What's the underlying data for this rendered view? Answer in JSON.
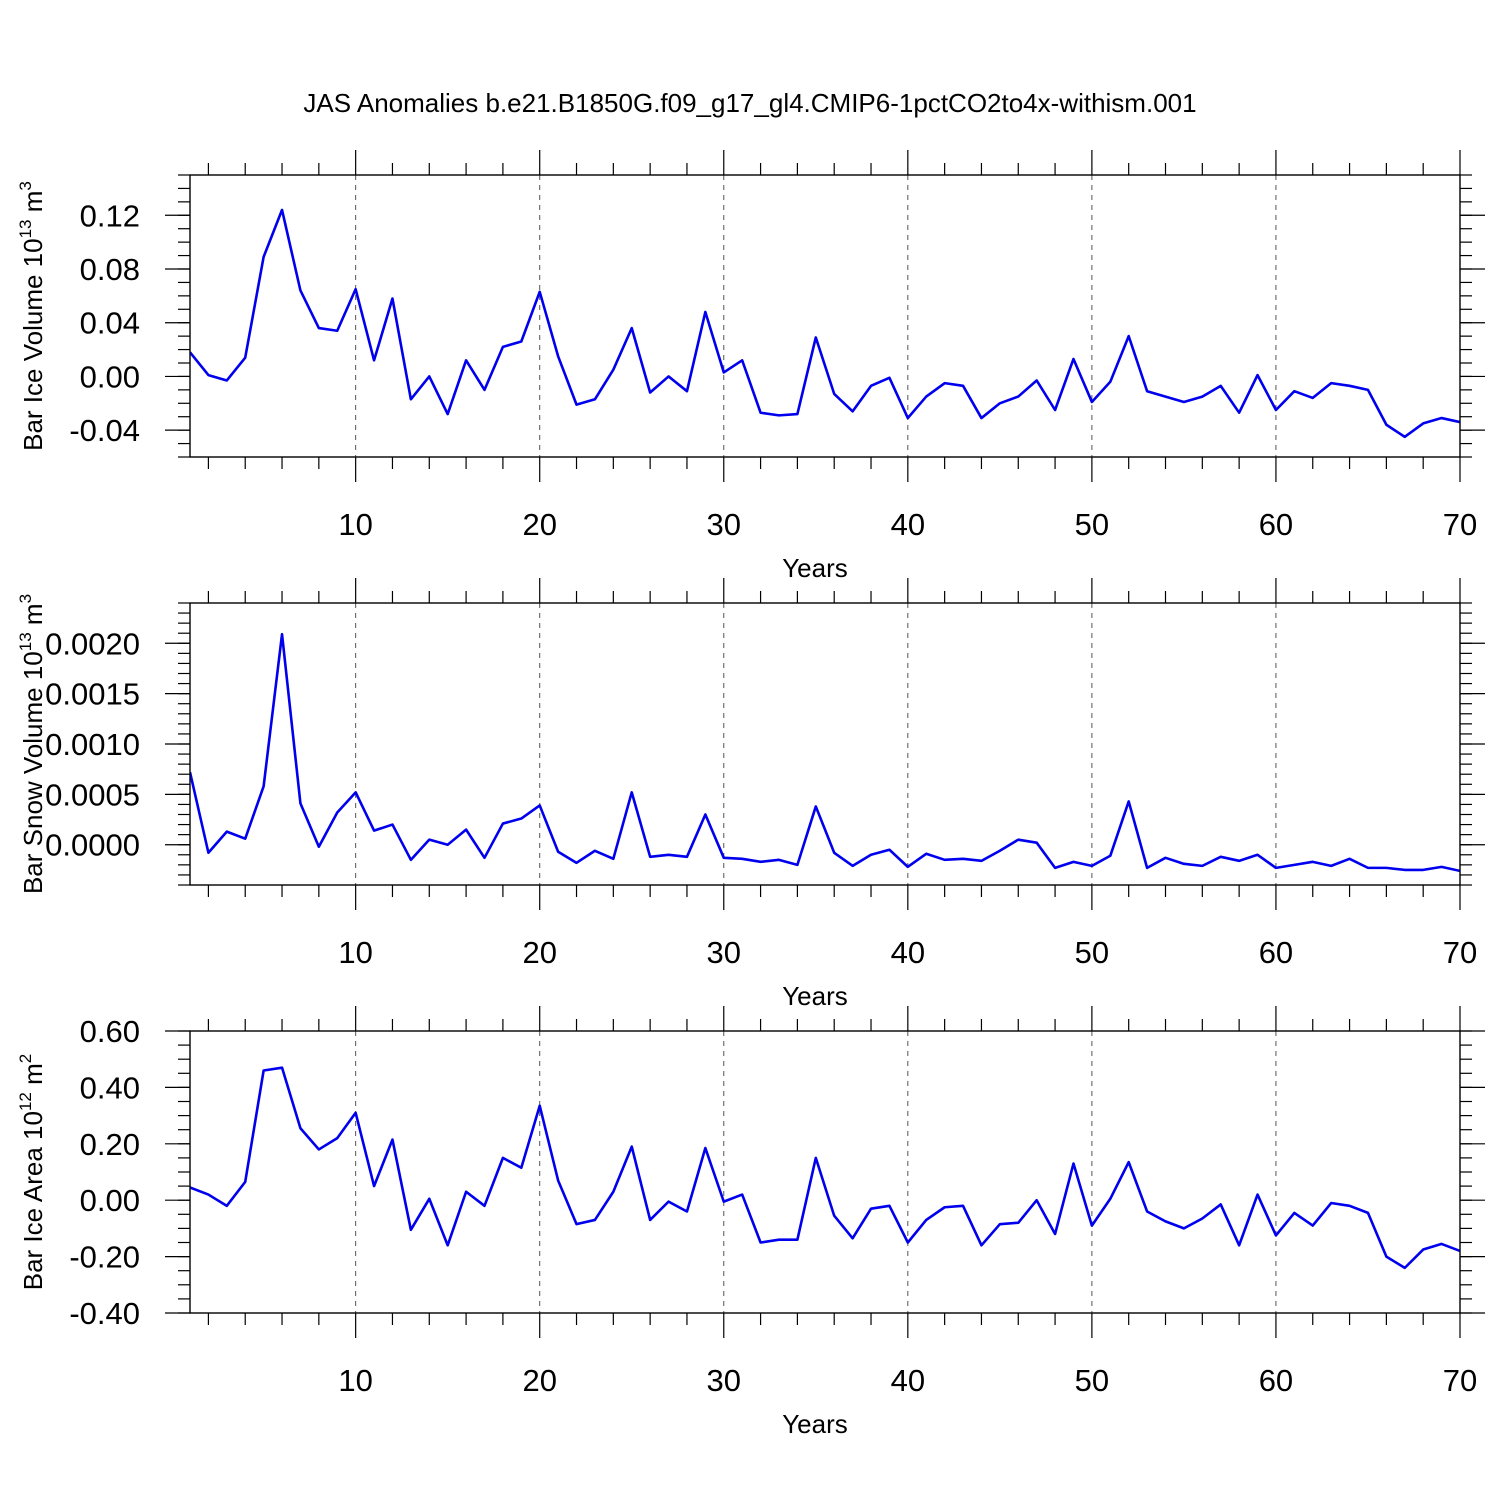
{
  "title": "JAS Anomalies b.e21.B1850G.f09_g17_gl4.CMIP6-1pctCO2to4x-withism.001",
  "line_color": "#0000ee",
  "chart_data": [
    {
      "type": "line",
      "ylabel": "Bar Ice Volume 10",
      "ylabel_exp": "13",
      "ylabel_unit": " m",
      "ylabel_unit_exp": "3",
      "xlabel": "Years",
      "xlim": [
        1,
        70
      ],
      "ylim": [
        -0.06,
        0.15
      ],
      "xticks": [
        "10",
        "20",
        "30",
        "40",
        "50",
        "60",
        "70"
      ],
      "xgrid": [
        10,
        20,
        30,
        40,
        50,
        60
      ],
      "yticks": [
        {
          "v": 0.12,
          "label": "0.12"
        },
        {
          "v": 0.08,
          "label": "0.08"
        },
        {
          "v": 0.04,
          "label": "0.04"
        },
        {
          "v": 0.0,
          "label": "0.00"
        },
        {
          "v": -0.04,
          "label": "-0.04"
        }
      ],
      "yminor_step": 0.01,
      "values": [
        0.018,
        0.001,
        -0.003,
        0.014,
        0.089,
        0.124,
        0.064,
        0.036,
        0.034,
        0.065,
        0.012,
        0.058,
        -0.017,
        0.0,
        -0.028,
        0.012,
        -0.01,
        0.022,
        0.026,
        0.063,
        0.015,
        -0.021,
        -0.017,
        0.005,
        0.036,
        -0.012,
        0.0,
        -0.011,
        0.048,
        0.003,
        0.012,
        -0.027,
        -0.029,
        -0.028,
        0.029,
        -0.013,
        -0.026,
        -0.007,
        -0.001,
        -0.031,
        -0.015,
        -0.005,
        -0.007,
        -0.031,
        -0.02,
        -0.015,
        -0.003,
        -0.025,
        0.013,
        -0.019,
        -0.004,
        0.03,
        -0.011,
        -0.015,
        -0.019,
        -0.015,
        -0.007,
        -0.027,
        0.001,
        -0.025,
        -0.011,
        -0.016,
        -0.005,
        -0.007,
        -0.01,
        -0.036,
        -0.045,
        -0.035,
        -0.031,
        -0.034
      ]
    },
    {
      "type": "line",
      "ylabel": "Bar Snow Volume 10",
      "ylabel_exp": "13",
      "ylabel_unit": " m",
      "ylabel_unit_exp": "3",
      "xlabel": "Years",
      "xlim": [
        1,
        70
      ],
      "ylim": [
        -0.0004,
        0.0024
      ],
      "xticks": [
        "10",
        "20",
        "30",
        "40",
        "50",
        "60",
        "70"
      ],
      "xgrid": [
        10,
        20,
        30,
        40,
        50,
        60
      ],
      "yticks": [
        {
          "v": 0.002,
          "label": "0.0020"
        },
        {
          "v": 0.0015,
          "label": "0.0015"
        },
        {
          "v": 0.001,
          "label": "0.0010"
        },
        {
          "v": 0.0005,
          "label": "0.0005"
        },
        {
          "v": 0.0,
          "label": "0.0000"
        }
      ],
      "yminor_step": 0.0001,
      "values": [
        0.00072,
        -8e-05,
        0.00013,
        6e-05,
        0.00058,
        0.00209,
        0.00041,
        -2e-05,
        0.00032,
        0.00052,
        0.00014,
        0.0002,
        -0.00015,
        5e-05,
        0.0,
        0.00015,
        -0.00013,
        0.00021,
        0.00026,
        0.00039,
        -7e-05,
        -0.00018,
        -6e-05,
        -0.00014,
        0.00052,
        -0.00012,
        -0.0001,
        -0.00012,
        0.0003,
        -0.00013,
        -0.00014,
        -0.00017,
        -0.00015,
        -0.0002,
        0.00038,
        -8e-05,
        -0.00021,
        -0.0001,
        -5e-05,
        -0.00022,
        -9e-05,
        -0.00015,
        -0.00014,
        -0.00016,
        -6e-05,
        5e-05,
        2e-05,
        -0.00023,
        -0.00017,
        -0.00021,
        -0.00011,
        0.00043,
        -0.00023,
        -0.00013,
        -0.00019,
        -0.00021,
        -0.00012,
        -0.00016,
        -0.0001,
        -0.00023,
        -0.0002,
        -0.00017,
        -0.00021,
        -0.00014,
        -0.00023,
        -0.00023,
        -0.00025,
        -0.00025,
        -0.00022,
        -0.00026
      ]
    },
    {
      "type": "line",
      "ylabel": "Bar Ice Area 10",
      "ylabel_exp": "12",
      "ylabel_unit": " m",
      "ylabel_unit_exp": "2",
      "xlabel": "Years",
      "xlim": [
        1,
        70
      ],
      "ylim": [
        -0.4,
        0.6
      ],
      "xticks": [
        "10",
        "20",
        "30",
        "40",
        "50",
        "60",
        "70"
      ],
      "xgrid": [
        10,
        20,
        30,
        40,
        50,
        60
      ],
      "yticks": [
        {
          "v": 0.6,
          "label": "0.60"
        },
        {
          "v": 0.4,
          "label": "0.40"
        },
        {
          "v": 0.2,
          "label": "0.20"
        },
        {
          "v": 0.0,
          "label": "0.00"
        },
        {
          "v": -0.2,
          "label": "-0.20"
        },
        {
          "v": -0.4,
          "label": "-0.40"
        }
      ],
      "yminor_step": 0.05,
      "values": [
        0.045,
        0.02,
        -0.02,
        0.065,
        0.46,
        0.47,
        0.255,
        0.18,
        0.22,
        0.31,
        0.05,
        0.215,
        -0.105,
        0.005,
        -0.16,
        0.03,
        -0.02,
        0.15,
        0.115,
        0.335,
        0.07,
        -0.085,
        -0.07,
        0.03,
        0.19,
        -0.07,
        -0.005,
        -0.04,
        0.185,
        -0.005,
        0.02,
        -0.15,
        -0.14,
        -0.14,
        0.15,
        -0.055,
        -0.135,
        -0.03,
        -0.02,
        -0.15,
        -0.07,
        -0.025,
        -0.02,
        -0.16,
        -0.085,
        -0.08,
        0.0,
        -0.12,
        0.13,
        -0.09,
        0.005,
        0.135,
        -0.04,
        -0.075,
        -0.1,
        -0.065,
        -0.015,
        -0.16,
        0.02,
        -0.125,
        -0.045,
        -0.09,
        -0.01,
        -0.02,
        -0.045,
        -0.2,
        -0.24,
        -0.175,
        -0.155,
        -0.18
      ]
    }
  ]
}
